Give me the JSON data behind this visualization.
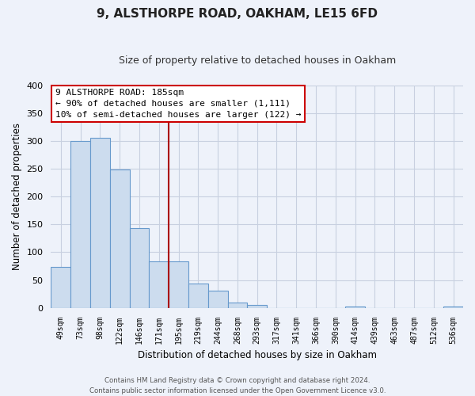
{
  "title": "9, ALSTHORPE ROAD, OAKHAM, LE15 6FD",
  "subtitle": "Size of property relative to detached houses in Oakham",
  "xlabel": "Distribution of detached houses by size in Oakham",
  "ylabel": "Number of detached properties",
  "bar_labels": [
    "49sqm",
    "73sqm",
    "98sqm",
    "122sqm",
    "146sqm",
    "171sqm",
    "195sqm",
    "219sqm",
    "244sqm",
    "268sqm",
    "293sqm",
    "317sqm",
    "341sqm",
    "366sqm",
    "390sqm",
    "414sqm",
    "439sqm",
    "463sqm",
    "487sqm",
    "512sqm",
    "536sqm"
  ],
  "bar_values": [
    73,
    300,
    305,
    249,
    144,
    83,
    83,
    44,
    31,
    9,
    5,
    0,
    0,
    0,
    0,
    2,
    0,
    0,
    0,
    0,
    2
  ],
  "bar_color": "#ccdcee",
  "bar_edge_color": "#6699cc",
  "property_line_index": 6,
  "property_line_color": "#aa0000",
  "ylim": [
    0,
    400
  ],
  "yticks": [
    0,
    50,
    100,
    150,
    200,
    250,
    300,
    350,
    400
  ],
  "annotation_title": "9 ALSTHORPE ROAD: 185sqm",
  "annotation_line1": "← 90% of detached houses are smaller (1,111)",
  "annotation_line2": "10% of semi-detached houses are larger (122) →",
  "footer_line1": "Contains HM Land Registry data © Crown copyright and database right 2024.",
  "footer_line2": "Contains public sector information licensed under the Open Government Licence v3.0.",
  "background_color": "#eef2fa",
  "plot_background": "#eef2fa",
  "grid_color": "#c8d0e0",
  "title_fontsize": 11,
  "subtitle_fontsize": 9
}
